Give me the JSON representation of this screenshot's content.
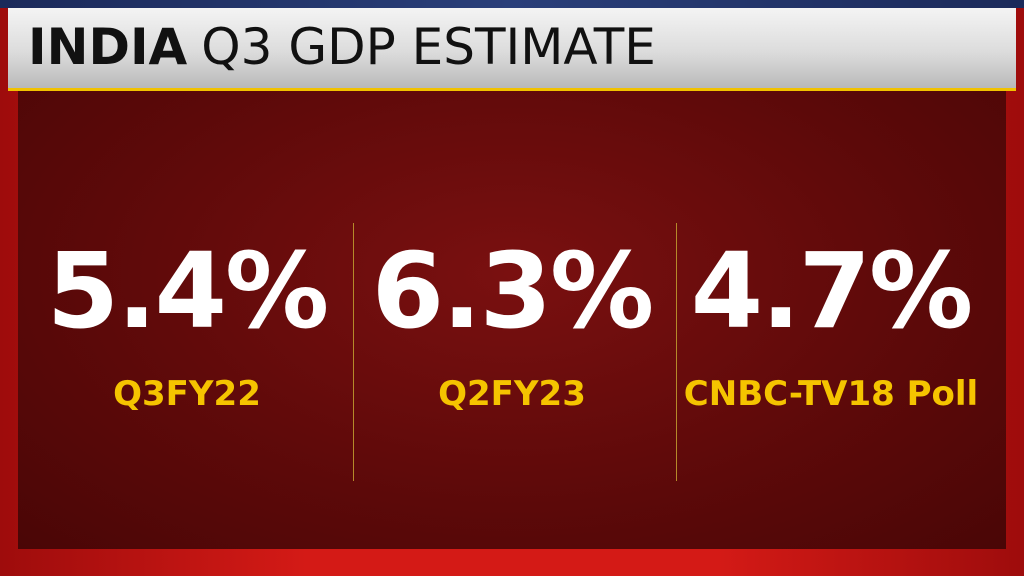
{
  "header": {
    "title_bold": "INDIA",
    "title": "Q3 GDP ESTIMATE"
  },
  "stats": [
    {
      "value": "5.4%",
      "label": "Q3FY22"
    },
    {
      "value": "6.3%",
      "label": "Q2FY23"
    },
    {
      "value": "4.7%",
      "label": "CNBC-TV18 Poll"
    }
  ]
}
